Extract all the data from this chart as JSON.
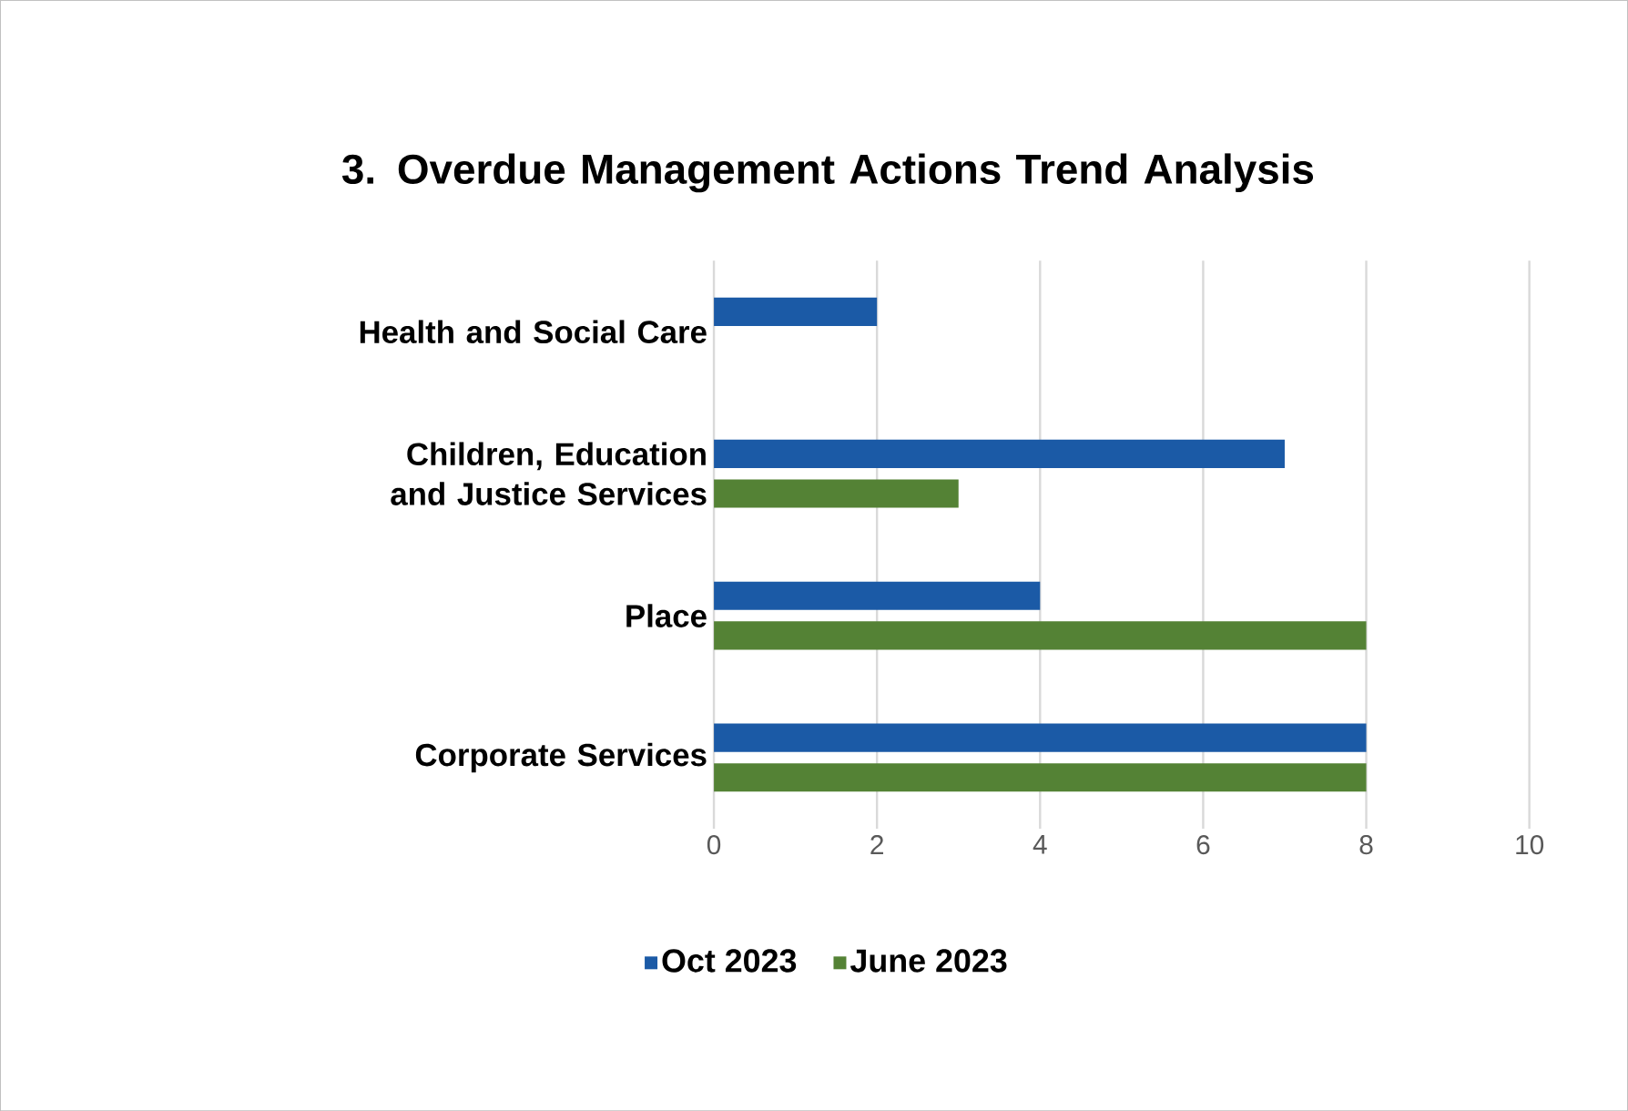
{
  "chart_data": {
    "type": "bar",
    "orientation": "horizontal",
    "title": "3. Overdue Management Actions Trend Analysis",
    "categories": [
      "Health and Social Care",
      "Children, Education and Justice Services",
      "Place",
      "Corporate Services"
    ],
    "series": [
      {
        "name": "Oct 2023",
        "color": "#1b5aa6",
        "values": [
          2,
          7,
          4,
          8
        ]
      },
      {
        "name": "June 2023",
        "color": "#548235",
        "values": [
          null,
          3,
          8,
          8
        ]
      }
    ],
    "xlim": [
      0,
      10
    ],
    "xticks": [
      0,
      2,
      4,
      6,
      8,
      10
    ],
    "grid": "x",
    "legend": "bottom"
  }
}
